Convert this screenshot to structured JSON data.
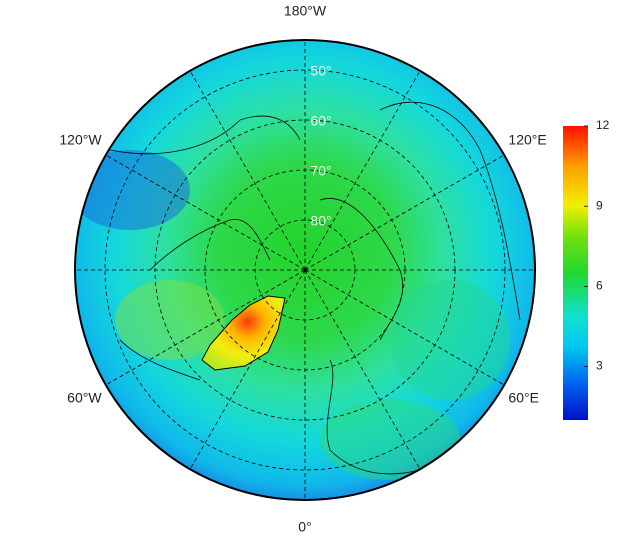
{
  "map": {
    "lon_labels": [
      {
        "value": 180,
        "label": "180°W"
      },
      {
        "value": -120,
        "label": "120°W"
      },
      {
        "value": 120,
        "label": "120°E"
      },
      {
        "value": -60,
        "label": "60°W"
      },
      {
        "value": 60,
        "label": "60°E"
      },
      {
        "value": 0,
        "label": "0°"
      }
    ],
    "lat_labels": [
      {
        "value": 50,
        "label": "50°"
      },
      {
        "value": 60,
        "label": "60°"
      },
      {
        "value": 70,
        "label": "70°"
      },
      {
        "value": 80,
        "label": "80°"
      }
    ],
    "colorbar": {
      "lim": [
        1,
        12
      ],
      "ticks": [
        3,
        6,
        9,
        12
      ]
    }
  }
}
